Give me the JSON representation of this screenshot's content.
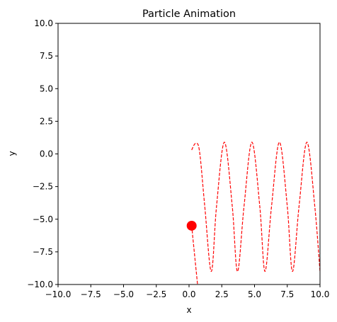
{
  "chart_data": {
    "type": "line",
    "title": "Particle Animation",
    "xlabel": "x",
    "ylabel": "y",
    "xlim": [
      -10,
      10
    ],
    "ylim": [
      -10,
      10
    ],
    "xticks": [
      "−10.0",
      "−7.5",
      "−5.0",
      "−2.5",
      "0.0",
      "2.5",
      "5.0",
      "7.5",
      "10.0"
    ],
    "yticks": [
      "−10.0",
      "−7.5",
      "−5.0",
      "−2.5",
      "0.0",
      "2.5",
      "5.0",
      "7.5",
      "10.0"
    ],
    "grid": false,
    "legend": "none",
    "series": [
      {
        "style": "dashed",
        "color": "#ff0000",
        "x": [
          0.2,
          0.5,
          0.8,
          1.2,
          1.7,
          2.1,
          2.7,
          3.3,
          3.7,
          4.2,
          4.8,
          5.4,
          5.8,
          6.3,
          6.9,
          7.5,
          7.9,
          8.4,
          9.0,
          9.6,
          10.0
        ],
        "y": [
          0.3,
          0.8,
          0.2,
          -4.0,
          -9.0,
          -4.0,
          0.9,
          -4.0,
          -9.0,
          -4.0,
          0.9,
          -4.0,
          -9.0,
          -4.0,
          0.9,
          -4.0,
          -9.0,
          -4.0,
          0.9,
          -4.0,
          -9.0
        ]
      },
      {
        "style": "dashed",
        "color": "#ff0000",
        "x": [
          0.2,
          0.45,
          0.65
        ],
        "y": [
          -5.5,
          -8.0,
          -10.0
        ]
      }
    ],
    "marker": {
      "x": 0.2,
      "y": -5.5,
      "color": "#ff0000"
    }
  }
}
